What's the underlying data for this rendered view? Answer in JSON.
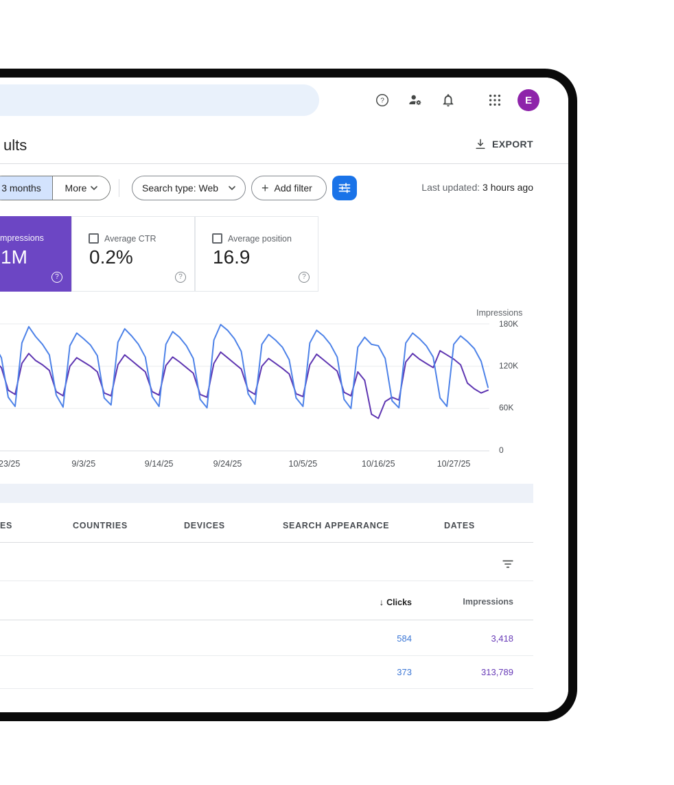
{
  "colors": {
    "accent_blue": "#1a73e8",
    "card_purple": "#6c46c4",
    "chip_selected_bg": "#d3e3fd",
    "clicks_blue": "#3c77d6",
    "impressions_purple": "#673ab7"
  },
  "topbar": {
    "avatar_letter": "E"
  },
  "page_header": {
    "title_fragment": "ults",
    "export_label": "EXPORT"
  },
  "filter_bar": {
    "segments": [
      {
        "label": "3 months",
        "selected": true
      },
      {
        "label": "More",
        "selected": false
      }
    ],
    "search_type_chip": "Search type: Web",
    "add_filter_label": "Add filter",
    "add_glyph": "+",
    "last_updated_label": "Last updated:",
    "last_updated_value": "3 hours ago"
  },
  "metric_cards": {
    "impressions": {
      "label_fragment": "mpressions",
      "value_fragment": "1M",
      "help_glyph": "?"
    },
    "ctr": {
      "label": "Average CTR",
      "value": "0.2%",
      "help_glyph": "?"
    },
    "position": {
      "label": "Average position",
      "value": "16.9",
      "help_glyph": "?"
    }
  },
  "chart_data": {
    "type": "line",
    "y_axis_title": "Impressions",
    "y_ticks": [
      "180K",
      "120K",
      "60K",
      "0"
    ],
    "gridlines_k": [
      180,
      120,
      60,
      0
    ],
    "y_max_k": 180,
    "n_points": 73,
    "x_ticks": [
      {
        "label": "/23/25",
        "i": 2
      },
      {
        "label": "9/3/25",
        "i": 13
      },
      {
        "label": "9/14/25",
        "i": 24
      },
      {
        "label": "9/24/25",
        "i": 34
      },
      {
        "label": "10/5/25",
        "i": 45
      },
      {
        "label": "10/16/25",
        "i": 56
      },
      {
        "label": "10/27/25",
        "i": 67
      }
    ],
    "series": [
      {
        "key": "impressions",
        "name": "Impressions",
        "color": "#5e35b1",
        "values_k": [
          128,
          118,
          86,
          80,
          124,
          138,
          128,
          122,
          114,
          84,
          78,
          120,
          132,
          126,
          120,
          112,
          82,
          78,
          122,
          136,
          128,
          120,
          112,
          84,
          79,
          121,
          133,
          126,
          118,
          110,
          80,
          76,
          124,
          140,
          132,
          124,
          116,
          86,
          80,
          120,
          131,
          124,
          117,
          109,
          81,
          77,
          122,
          137,
          129,
          121,
          113,
          83,
          78,
          112,
          100,
          52,
          46,
          70,
          76,
          72,
          126,
          138,
          130,
          124,
          118,
          142,
          136,
          130,
          122,
          96,
          88,
          82,
          86
        ]
      },
      {
        "key": "clicks",
        "name": "Clicks",
        "color": "#4d82e8",
        "values_k": [
          150,
          132,
          76,
          63,
          153,
          176,
          162,
          151,
          136,
          79,
          62,
          149,
          167,
          159,
          150,
          135,
          75,
          65,
          154,
          173,
          163,
          151,
          133,
          77,
          63,
          151,
          169,
          161,
          149,
          131,
          73,
          61,
          157,
          179,
          171,
          159,
          141,
          81,
          66,
          151,
          165,
          157,
          147,
          129,
          75,
          63,
          153,
          171,
          163,
          151,
          133,
          73,
          60,
          147,
          161,
          151,
          149,
          131,
          71,
          61,
          153,
          167,
          159,
          149,
          133,
          75,
          63,
          151,
          163,
          155,
          145,
          127,
          90
        ]
      }
    ]
  },
  "results_table": {
    "tabs": [
      "ES",
      "COUNTRIES",
      "DEVICES",
      "SEARCH APPEARANCE",
      "DATES"
    ],
    "sort_glyph": "↓",
    "columns": {
      "clicks": "Clicks",
      "impressions": "Impressions"
    },
    "rows": [
      {
        "clicks": "584",
        "impressions": "3,418"
      },
      {
        "clicks": "373",
        "impressions": "313,789"
      }
    ]
  }
}
